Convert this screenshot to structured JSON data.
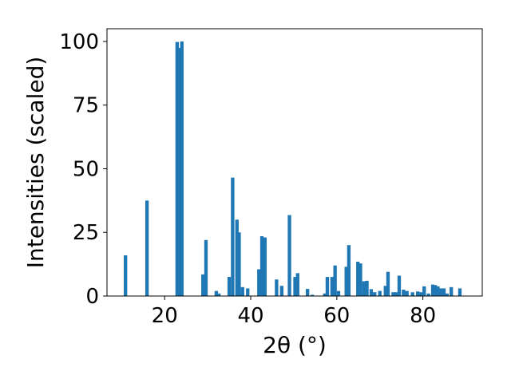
{
  "chart_data": {
    "type": "bar",
    "title": "",
    "xlabel": "2θ (°)",
    "ylabel": "Intensities (scaled)",
    "xlim": [
      6.6,
      93.8
    ],
    "ylim": [
      0,
      105
    ],
    "xticks": [
      20,
      40,
      60,
      80
    ],
    "yticks": [
      0,
      25,
      50,
      75,
      100
    ],
    "grid": false,
    "bar_width": 0.8,
    "bar_color": "#1f77b4",
    "x": [
      10.9,
      15.9,
      22.9,
      23.4,
      24.0,
      28.9,
      29.6,
      32.0,
      32.6,
      35.0,
      35.8,
      36.8,
      37.3,
      38.1,
      39.3,
      41.9,
      42.6,
      43.3,
      46.0,
      47.2,
      49.0,
      50.3,
      50.9,
      53.2,
      54.3,
      57.2,
      57.8,
      58.9,
      59.6,
      60.4,
      62.2,
      62.8,
      64.9,
      65.5,
      66.3,
      67.0,
      68.0,
      68.8,
      70.0,
      71.3,
      71.9,
      73.1,
      73.8,
      74.5,
      75.5,
      76.3,
      77.6,
      78.8,
      79.5,
      80.3,
      81.3,
      82.3,
      82.9,
      83.5,
      84.2,
      84.9,
      85.6,
      86.6,
      88.6
    ],
    "values": [
      16,
      37.5,
      99.8,
      97.5,
      100,
      8.5,
      22,
      2,
      1,
      7.5,
      46.5,
      30,
      25,
      3.5,
      3,
      10.5,
      23.5,
      23,
      6.5,
      4,
      31.8,
      7.5,
      9,
      2.8,
      0.5,
      1,
      7.5,
      7.5,
      12,
      2,
      11.5,
      20,
      13.5,
      12.8,
      5.8,
      6,
      2.7,
      1.5,
      2,
      4,
      9.5,
      1.5,
      1.5,
      8,
      2.5,
      2,
      1.5,
      1.8,
      1.5,
      3.8,
      1,
      4.5,
      4.3,
      3.8,
      3,
      3,
      1,
      3.5,
      3
    ]
  }
}
